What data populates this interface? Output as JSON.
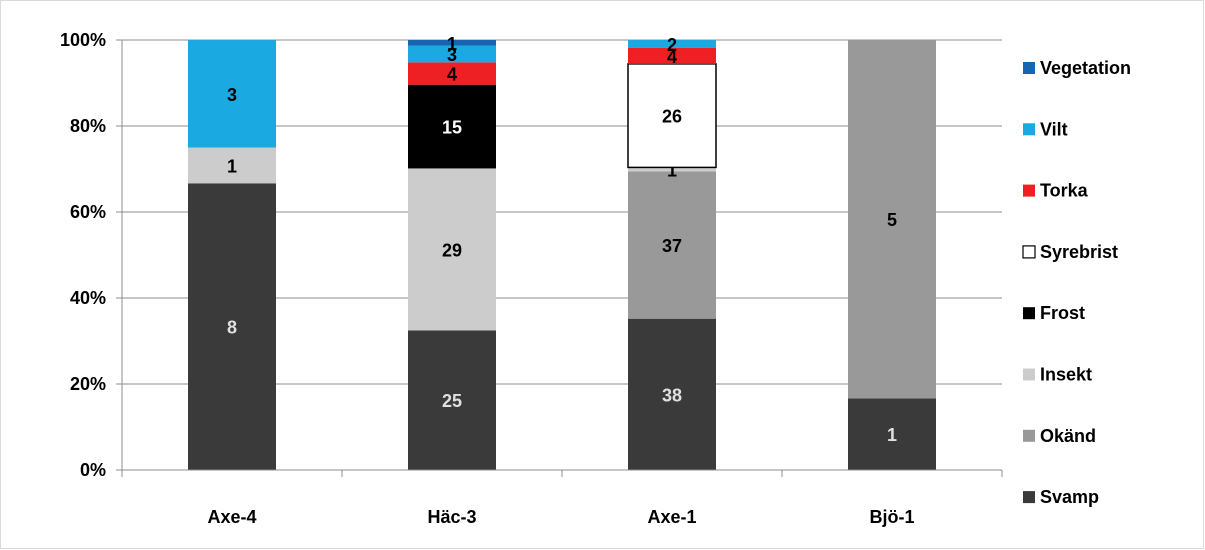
{
  "chart_data": {
    "type": "bar",
    "stacked": "percent",
    "categories": [
      "Axe-4",
      "Häc-3",
      "Axe-1",
      "Bjö-1"
    ],
    "yticks": [
      "0%",
      "20%",
      "40%",
      "60%",
      "80%",
      "100%"
    ],
    "ylim": [
      0,
      100
    ],
    "grid": true,
    "legend_position": "right",
    "series": [
      {
        "name": "Svamp",
        "color": "#3a3a3a",
        "label_color": "#e0e0e0",
        "values": [
          8,
          25,
          38,
          1
        ]
      },
      {
        "name": "Okänd",
        "color": "#999999",
        "label_color": "#000000",
        "values": [
          0,
          0,
          37,
          5
        ]
      },
      {
        "name": "Insekt",
        "color": "#cccccc",
        "label_color": "#000000",
        "values": [
          1,
          29,
          1,
          0
        ]
      },
      {
        "name": "Frost",
        "color": "#000000",
        "label_color": "#ffffff",
        "values": [
          0,
          15,
          0,
          0
        ]
      },
      {
        "name": "Syrebrist",
        "color": "#ffffff",
        "label_color": "#000000",
        "outline": "#000000",
        "values": [
          0,
          0,
          26,
          0
        ]
      },
      {
        "name": "Torka",
        "color": "#ee2024",
        "label_color": "#000000",
        "values": [
          0,
          4,
          4,
          0
        ]
      },
      {
        "name": "Vilt",
        "color": "#1aa9e1",
        "label_color": "#000000",
        "values": [
          3,
          3,
          2,
          0
        ]
      },
      {
        "name": "Vegetation",
        "color": "#1565b0",
        "label_color": "#000000",
        "values": [
          0,
          1,
          0,
          0
        ]
      }
    ]
  }
}
